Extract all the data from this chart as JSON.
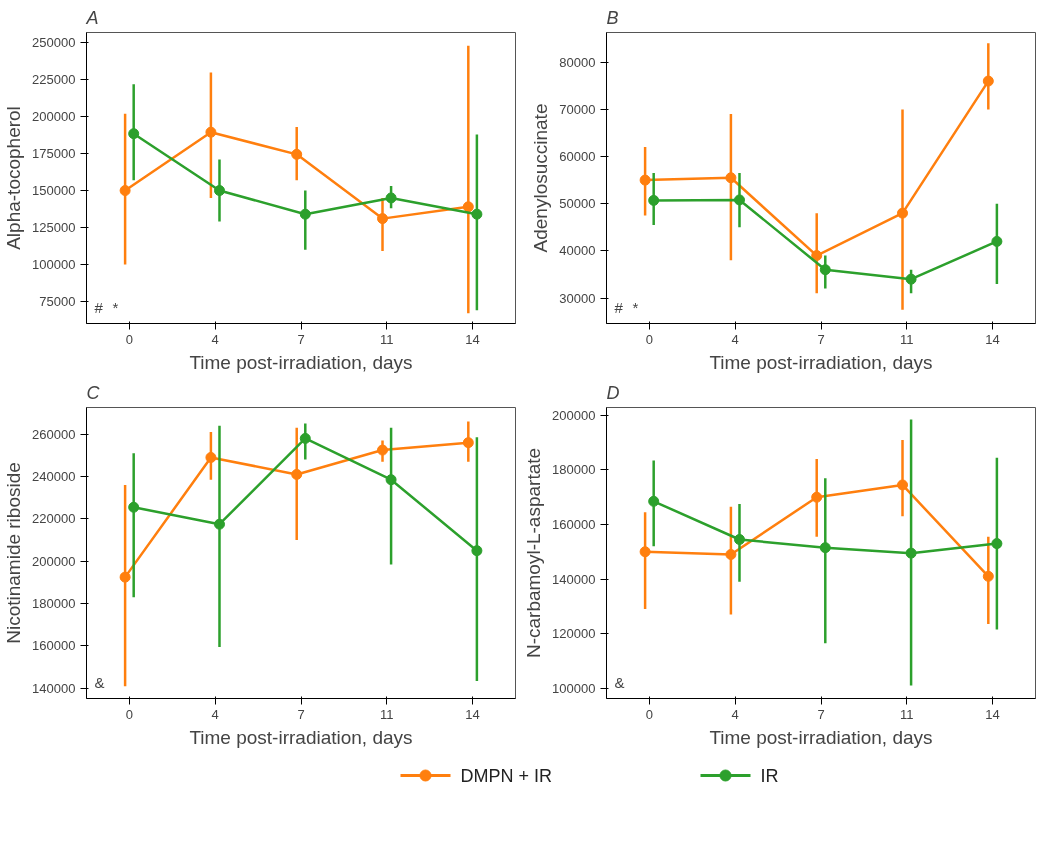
{
  "chart_data": [
    {
      "type": "line",
      "title": "A",
      "xlabel": "Time post-irradiation, days",
      "ylabel": "Alpha-tocopherol",
      "categories": [
        "0",
        "4",
        "7",
        "11",
        "14"
      ],
      "ylim": [
        60000,
        257000
      ],
      "yticks": [
        75000,
        100000,
        125000,
        150000,
        175000,
        200000,
        225000,
        250000
      ],
      "grid": false,
      "legend": "bottom",
      "marker": "circle",
      "line_style": "solid",
      "series": [
        {
          "name": "DMPN + IR",
          "color": "#ff7f0e",
          "values": [
            150000,
            189500,
            174500,
            131000,
            139000
          ],
          "errors": [
            [
              100000,
              202000
            ],
            [
              145000,
              230000
            ],
            [
              157000,
              193000
            ],
            [
              109000,
              145000
            ],
            [
              67000,
              248000
            ]
          ]
        },
        {
          "name": "IR",
          "color": "#2ca02c",
          "values": [
            188500,
            150000,
            134000,
            145000,
            134000
          ],
          "errors": [
            [
              157000,
              222000
            ],
            [
              129000,
              171000
            ],
            [
              110000,
              150000
            ],
            [
              138000,
              153000
            ],
            [
              69000,
              188000
            ]
          ]
        }
      ],
      "annotations": [
        "#",
        "*"
      ]
    },
    {
      "type": "line",
      "title": "B",
      "xlabel": "Time post-irradiation, days",
      "ylabel": "Adenylosuccinate",
      "categories": [
        "0",
        "4",
        "7",
        "11",
        "14"
      ],
      "ylim": [
        24600,
        86300
      ],
      "yticks": [
        30000,
        40000,
        50000,
        60000,
        70000,
        80000
      ],
      "grid": false,
      "marker": "circle",
      "line_style": "solid",
      "series": [
        {
          "color": "#ff7f0e",
          "values": [
            55000,
            55500,
            39000,
            48000,
            76000
          ],
          "errors": [
            [
              47500,
              62000
            ],
            [
              38000,
              69000
            ],
            [
              31000,
              48000
            ],
            [
              27500,
              70000
            ],
            [
              70000,
              84000
            ]
          ]
        },
        {
          "color": "#2ca02c",
          "values": [
            50700,
            50800,
            36000,
            34000,
            42000
          ],
          "errors": [
            [
              45500,
              56500
            ],
            [
              45000,
              56500
            ],
            [
              32000,
              39000
            ],
            [
              31000,
              36000
            ],
            [
              33000,
              50000
            ]
          ]
        }
      ],
      "annotations": [
        "#",
        "*"
      ]
    },
    {
      "type": "line",
      "title": "C",
      "xlabel": "Time post-irradiation, days",
      "ylabel": "Nicotinamide riboside",
      "categories": [
        "0",
        "4",
        "7",
        "11",
        "14"
      ],
      "ylim": [
        135200,
        272600
      ],
      "yticks": [
        140000,
        160000,
        180000,
        200000,
        220000,
        240000,
        260000
      ],
      "grid": false,
      "marker": "circle",
      "line_style": "solid",
      "series": [
        {
          "color": "#ff7f0e",
          "values": [
            192500,
            249000,
            241000,
            252500,
            256000
          ],
          "errors": [
            [
              141000,
              236000
            ],
            [
              238500,
              261000
            ],
            [
              210000,
              263000
            ],
            [
              247000,
              257000
            ],
            [
              247000,
              266000
            ]
          ]
        },
        {
          "color": "#2ca02c",
          "values": [
            225500,
            217500,
            258000,
            238500,
            205000
          ],
          "errors": [
            [
              183000,
              251000
            ],
            [
              159500,
              264000
            ],
            [
              248000,
              265000
            ],
            [
              198500,
              263000
            ],
            [
              143500,
              258500
            ]
          ]
        }
      ],
      "annotations": [
        "&"
      ]
    },
    {
      "type": "line",
      "title": "D",
      "xlabel": "Time post-irradiation, days",
      "ylabel": "N-carbamoyl-L-aspartate",
      "categories": [
        "0",
        "4",
        "7",
        "11",
        "14"
      ],
      "ylim": [
        96200,
        202900
      ],
      "yticks": [
        100000,
        120000,
        140000,
        160000,
        180000,
        200000
      ],
      "grid": false,
      "marker": "circle",
      "line_style": "solid",
      "series": [
        {
          "color": "#ff7f0e",
          "values": [
            150000,
            149000,
            170000,
            174500,
            141000
          ],
          "errors": [
            [
              129000,
              164500
            ],
            [
              127000,
              166500
            ],
            [
              155500,
              184000
            ],
            [
              163000,
              191000
            ],
            [
              123500,
              155500
            ]
          ]
        },
        {
          "color": "#2ca02c",
          "values": [
            168500,
            154500,
            151500,
            149500,
            153000
          ],
          "errors": [
            [
              152000,
              183500
            ],
            [
              139000,
              167500
            ],
            [
              116500,
              177000
            ],
            [
              101000,
              198500
            ],
            [
              121500,
              184500
            ]
          ]
        }
      ],
      "annotations": [
        "&"
      ]
    }
  ]
}
